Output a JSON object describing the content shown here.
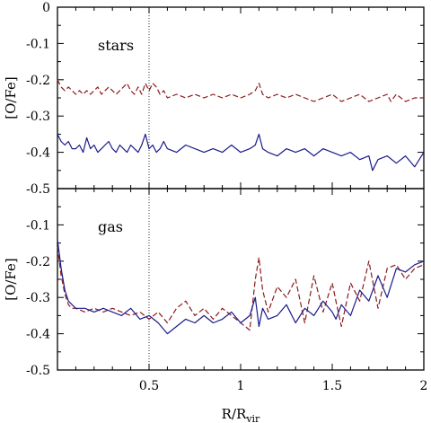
{
  "chart_data": [
    {
      "type": "line",
      "panel_label": "stars",
      "ylabel": "[O/Fe]",
      "xlim": [
        0,
        2
      ],
      "ylim": [
        -0.5,
        0
      ],
      "yticks": [
        "0",
        "-0.1",
        "-0.2",
        "-0.3",
        "-0.4",
        "-0.5"
      ],
      "reference_line_x": 0.5,
      "series": [
        {
          "color": "#8b1a1a",
          "style": "dashed",
          "x": [
            0.0,
            0.02,
            0.04,
            0.06,
            0.08,
            0.1,
            0.12,
            0.14,
            0.16,
            0.18,
            0.2,
            0.22,
            0.24,
            0.26,
            0.28,
            0.3,
            0.32,
            0.34,
            0.36,
            0.38,
            0.4,
            0.42,
            0.44,
            0.46,
            0.48,
            0.5,
            0.52,
            0.54,
            0.56,
            0.58,
            0.6,
            0.65,
            0.7,
            0.75,
            0.8,
            0.85,
            0.9,
            0.95,
            1.0,
            1.05,
            1.08,
            1.1,
            1.12,
            1.15,
            1.2,
            1.25,
            1.3,
            1.35,
            1.4,
            1.45,
            1.5,
            1.55,
            1.6,
            1.65,
            1.7,
            1.75,
            1.8,
            1.82,
            1.85,
            1.9,
            1.95,
            2.0
          ],
          "y": [
            -0.2,
            -0.22,
            -0.23,
            -0.22,
            -0.23,
            -0.24,
            -0.23,
            -0.24,
            -0.23,
            -0.24,
            -0.23,
            -0.22,
            -0.24,
            -0.23,
            -0.22,
            -0.23,
            -0.24,
            -0.23,
            -0.22,
            -0.21,
            -0.23,
            -0.24,
            -0.22,
            -0.24,
            -0.21,
            -0.23,
            -0.21,
            -0.22,
            -0.24,
            -0.23,
            -0.25,
            -0.24,
            -0.25,
            -0.24,
            -0.25,
            -0.24,
            -0.25,
            -0.24,
            -0.25,
            -0.24,
            -0.23,
            -0.21,
            -0.24,
            -0.25,
            -0.24,
            -0.25,
            -0.24,
            -0.25,
            -0.26,
            -0.25,
            -0.24,
            -0.26,
            -0.25,
            -0.24,
            -0.26,
            -0.25,
            -0.24,
            -0.26,
            -0.24,
            -0.26,
            -0.25,
            -0.25
          ]
        },
        {
          "color": "#1a1a8c",
          "style": "solid",
          "x": [
            0.0,
            0.02,
            0.04,
            0.06,
            0.08,
            0.1,
            0.12,
            0.14,
            0.16,
            0.18,
            0.2,
            0.22,
            0.24,
            0.26,
            0.28,
            0.3,
            0.32,
            0.34,
            0.36,
            0.38,
            0.4,
            0.42,
            0.44,
            0.46,
            0.48,
            0.5,
            0.52,
            0.54,
            0.56,
            0.58,
            0.6,
            0.65,
            0.7,
            0.75,
            0.8,
            0.85,
            0.9,
            0.95,
            1.0,
            1.05,
            1.08,
            1.1,
            1.12,
            1.15,
            1.2,
            1.25,
            1.3,
            1.35,
            1.4,
            1.45,
            1.5,
            1.55,
            1.6,
            1.65,
            1.7,
            1.72,
            1.75,
            1.8,
            1.85,
            1.9,
            1.95,
            2.0
          ],
          "y": [
            -0.35,
            -0.37,
            -0.38,
            -0.37,
            -0.39,
            -0.39,
            -0.38,
            -0.4,
            -0.36,
            -0.39,
            -0.38,
            -0.4,
            -0.39,
            -0.38,
            -0.37,
            -0.39,
            -0.4,
            -0.38,
            -0.39,
            -0.4,
            -0.38,
            -0.39,
            -0.4,
            -0.38,
            -0.35,
            -0.39,
            -0.38,
            -0.4,
            -0.39,
            -0.37,
            -0.39,
            -0.4,
            -0.38,
            -0.39,
            -0.4,
            -0.39,
            -0.4,
            -0.38,
            -0.4,
            -0.39,
            -0.38,
            -0.35,
            -0.39,
            -0.4,
            -0.41,
            -0.39,
            -0.4,
            -0.39,
            -0.41,
            -0.39,
            -0.4,
            -0.41,
            -0.4,
            -0.42,
            -0.41,
            -0.45,
            -0.42,
            -0.41,
            -0.43,
            -0.41,
            -0.44,
            -0.4
          ]
        }
      ]
    },
    {
      "type": "line",
      "panel_label": "gas",
      "xlabel": "R/R",
      "xlabel_sub": "vir",
      "ylabel": "[O/Fe]",
      "xlim": [
        0,
        2
      ],
      "ylim": [
        -0.5,
        0
      ],
      "xticks": [
        "0.5",
        "1",
        "1.5",
        "2"
      ],
      "yticks": [
        "-0.1",
        "-0.2",
        "-0.3",
        "-0.4",
        "-0.5"
      ],
      "reference_line_x": 0.5,
      "series": [
        {
          "color": "#8b1a1a",
          "style": "dashed",
          "x": [
            0.0,
            0.02,
            0.04,
            0.06,
            0.08,
            0.1,
            0.15,
            0.2,
            0.25,
            0.3,
            0.35,
            0.4,
            0.45,
            0.5,
            0.55,
            0.6,
            0.65,
            0.7,
            0.75,
            0.8,
            0.85,
            0.9,
            0.95,
            1.0,
            1.05,
            1.08,
            1.1,
            1.12,
            1.15,
            1.2,
            1.25,
            1.3,
            1.35,
            1.4,
            1.45,
            1.5,
            1.52,
            1.55,
            1.6,
            1.65,
            1.7,
            1.75,
            1.8,
            1.85,
            1.9,
            1.95,
            2.0
          ],
          "y": [
            -0.16,
            -0.24,
            -0.29,
            -0.32,
            -0.33,
            -0.33,
            -0.34,
            -0.33,
            -0.34,
            -0.33,
            -0.34,
            -0.35,
            -0.34,
            -0.36,
            -0.34,
            -0.37,
            -0.33,
            -0.31,
            -0.35,
            -0.33,
            -0.36,
            -0.33,
            -0.35,
            -0.37,
            -0.39,
            -0.25,
            -0.19,
            -0.28,
            -0.34,
            -0.27,
            -0.3,
            -0.25,
            -0.37,
            -0.24,
            -0.34,
            -0.26,
            -0.31,
            -0.38,
            -0.26,
            -0.31,
            -0.2,
            -0.33,
            -0.22,
            -0.21,
            -0.25,
            -0.22,
            -0.21
          ]
        },
        {
          "color": "#1a1a8c",
          "style": "solid",
          "x": [
            0.0,
            0.02,
            0.04,
            0.06,
            0.08,
            0.1,
            0.15,
            0.2,
            0.25,
            0.3,
            0.35,
            0.4,
            0.45,
            0.5,
            0.55,
            0.6,
            0.65,
            0.7,
            0.75,
            0.8,
            0.85,
            0.9,
            0.95,
            1.0,
            1.05,
            1.08,
            1.1,
            1.12,
            1.15,
            1.2,
            1.25,
            1.3,
            1.35,
            1.4,
            1.45,
            1.5,
            1.52,
            1.55,
            1.6,
            1.65,
            1.7,
            1.75,
            1.8,
            1.85,
            1.9,
            1.95,
            2.0
          ],
          "y": [
            -0.14,
            -0.22,
            -0.28,
            -0.31,
            -0.32,
            -0.33,
            -0.33,
            -0.34,
            -0.33,
            -0.34,
            -0.35,
            -0.33,
            -0.36,
            -0.35,
            -0.37,
            -0.4,
            -0.38,
            -0.36,
            -0.37,
            -0.35,
            -0.37,
            -0.36,
            -0.34,
            -0.37,
            -0.35,
            -0.3,
            -0.38,
            -0.33,
            -0.36,
            -0.35,
            -0.32,
            -0.37,
            -0.33,
            -0.35,
            -0.31,
            -0.34,
            -0.36,
            -0.32,
            -0.35,
            -0.28,
            -0.31,
            -0.24,
            -0.3,
            -0.22,
            -0.23,
            -0.21,
            -0.2
          ]
        }
      ]
    }
  ]
}
